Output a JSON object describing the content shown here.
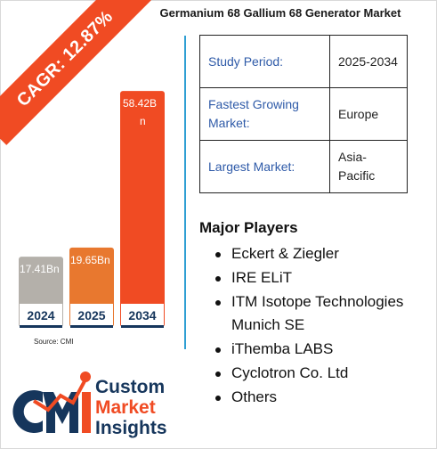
{
  "ribbon": {
    "cagr": "CAGR: 12.87%"
  },
  "title": "Germanium 68 Gallium 68 Generator Market",
  "chart_data": {
    "type": "bar",
    "categories": [
      "2024",
      "2025",
      "2034"
    ],
    "values": [
      17.41,
      19.65,
      58.42
    ],
    "value_labels": [
      "17.41Bn",
      "19.65Bn",
      "58.42Bn"
    ],
    "colors": [
      "#b4b0aa",
      "#e8782f",
      "#f04b23"
    ],
    "year_label_color": "#16365c",
    "ylim": [
      0,
      60
    ],
    "title": "",
    "xlabel": "",
    "ylabel": "",
    "grid": false,
    "legend": "none"
  },
  "source": "Source: CMI",
  "info_table": [
    {
      "label": "Study Period:",
      "value": "2025-2034"
    },
    {
      "label": "Fastest Growing Market:",
      "value": "Europe"
    },
    {
      "label": "Largest Market:",
      "value": "Asia-Pacific"
    }
  ],
  "players_heading": "Major Players",
  "players": [
    "Eckert & Ziegler",
    "IRE ELiT",
    "ITM Isotope Technologies Munich SE",
    "iThemba LABS",
    "Cyclotron Co. Ltd",
    "Others"
  ],
  "logo": {
    "monogram": "CMI",
    "line1": "Custom",
    "line2": "Market",
    "line3": "Insights",
    "colors": {
      "navy": "#16365c",
      "orange": "#f04b23"
    }
  },
  "colors": {
    "accent": "#f04b23",
    "divider": "#2f9fd3",
    "label_blue": "#2e5aa8"
  }
}
